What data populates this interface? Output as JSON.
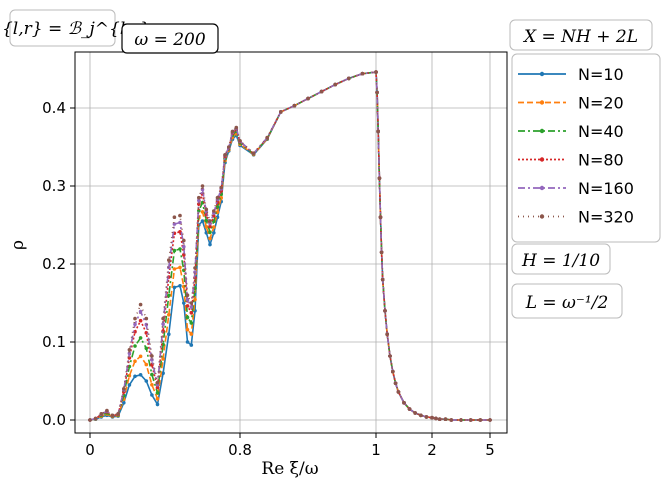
{
  "chart_data": {
    "type": "line",
    "xlabel": "Re ξ/ω",
    "ylabel": "ρ",
    "ylim": [
      -0.02,
      0.47
    ],
    "x_ticks": [
      {
        "value": 0.0,
        "label": "0"
      },
      {
        "value": 0.8,
        "label": "0.8"
      },
      {
        "value": 1.0,
        "label": "1"
      },
      {
        "value": 2.0,
        "label": "2"
      },
      {
        "value": 5.0,
        "label": "5"
      }
    ],
    "y_ticks": [
      {
        "value": 0.0,
        "label": "0.0"
      },
      {
        "value": 0.1,
        "label": "0.1"
      },
      {
        "value": 0.2,
        "label": "0.2"
      },
      {
        "value": 0.3,
        "label": "0.3"
      },
      {
        "value": 0.4,
        "label": "0.4"
      }
    ],
    "grid": true,
    "legend_placement": "outside-right",
    "annotations": {
      "top_left": "ℬ^{l,r} = ℬ_j^{l,r}",
      "omega": "ω = 200",
      "x_def": "X = NH + 2L",
      "h_def": "H = 1/10",
      "l_def": "L = ω⁻¹/2"
    },
    "series": [
      {
        "name": "N=10",
        "color": "#1f77b4",
        "dash": "",
        "scale": 0.39
      },
      {
        "name": "N=20",
        "color": "#ff7f0e",
        "dash": "6,3",
        "scale": 0.55
      },
      {
        "name": "N=40",
        "color": "#2ca02c",
        "dash": "7,3,2,3",
        "scale": 0.71
      },
      {
        "name": "N=80",
        "color": "#d62728",
        "dash": "2,2",
        "scale": 0.86
      },
      {
        "name": "N=160",
        "color": "#9467bd",
        "dash": "7,3,2,3",
        "scale": 0.94
      },
      {
        "name": "N=320",
        "color": "#8c564b",
        "dash": "1,4",
        "scale": 1.0
      }
    ],
    "base_x": [
      0.0,
      0.03,
      0.06,
      0.09,
      0.12,
      0.15,
      0.18,
      0.21,
      0.24,
      0.27,
      0.3,
      0.33,
      0.36,
      0.39,
      0.42,
      0.45,
      0.48,
      0.5,
      0.52,
      0.54,
      0.56,
      0.58,
      0.6,
      0.62,
      0.64,
      0.66,
      0.68,
      0.7,
      0.72,
      0.74,
      0.76,
      0.78,
      0.8,
      0.82,
      0.84,
      0.86,
      0.88,
      0.9,
      0.92,
      0.94,
      0.96,
      0.98,
      1.0,
      1.02,
      1.04,
      1.06,
      1.08,
      1.1,
      1.12,
      1.16,
      1.2,
      1.25,
      1.3,
      1.35,
      1.4,
      1.5,
      1.6,
      1.7,
      1.8,
      1.9,
      2.0,
      2.2,
      2.4,
      2.7,
      3.0,
      3.5,
      4.0,
      4.5,
      5.0
    ],
    "N320_y": [
      0.0,
      0.002,
      0.008,
      0.012,
      0.006,
      0.008,
      0.04,
      0.09,
      0.13,
      0.148,
      0.13,
      0.082,
      0.048,
      0.13,
      0.205,
      0.26,
      0.262,
      0.23,
      0.16,
      0.15,
      0.195,
      0.285,
      0.3,
      0.27,
      0.255,
      0.268,
      0.285,
      0.298,
      0.34,
      0.35,
      0.37,
      0.375,
      0.358,
      0.342,
      0.362,
      0.395,
      0.403,
      0.412,
      0.421,
      0.43,
      0.438,
      0.444,
      0.446,
      0.42,
      0.37,
      0.31,
      0.26,
      0.215,
      0.18,
      0.14,
      0.11,
      0.082,
      0.062,
      0.047,
      0.036,
      0.022,
      0.014,
      0.009,
      0.006,
      0.004,
      0.003,
      0.002,
      0.001,
      0.001,
      0.0,
      0.0,
      0.0,
      0.0,
      0.0
    ],
    "N10_y": [
      0.0,
      0.001,
      0.004,
      0.006,
      0.004,
      0.005,
      0.022,
      0.045,
      0.056,
      0.058,
      0.05,
      0.032,
      0.02,
      0.06,
      0.11,
      0.17,
      0.172,
      0.15,
      0.1,
      0.096,
      0.14,
      0.25,
      0.255,
      0.24,
      0.225,
      0.24,
      0.26,
      0.28,
      0.33,
      0.345,
      0.36,
      0.365,
      0.352,
      0.34,
      0.36,
      0.395,
      0.403,
      0.412,
      0.421,
      0.43,
      0.438,
      0.444,
      0.446,
      0.42,
      0.37,
      0.31,
      0.26,
      0.215,
      0.18,
      0.14,
      0.11,
      0.082,
      0.062,
      0.047,
      0.036,
      0.022,
      0.014,
      0.009,
      0.006,
      0.004,
      0.003,
      0.002,
      0.001,
      0.001,
      0.0,
      0.0,
      0.0,
      0.0,
      0.0
    ]
  }
}
